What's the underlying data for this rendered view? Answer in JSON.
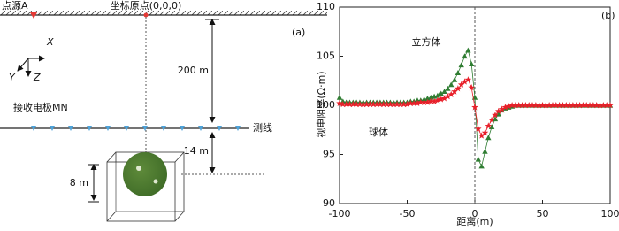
{
  "diagram": {
    "source_label": "点源A",
    "origin_label": "坐标原点(0,0,0)",
    "panel_label": "(a)",
    "axis_x": "X",
    "axis_y": "Y",
    "axis_z": "Z",
    "depth_label": "200 m",
    "electrodes_label": "接收电极MN",
    "line_label": "测线",
    "offset_label": "14 m",
    "size_label": "8 m"
  },
  "chart_data": {
    "type": "scatter",
    "panel_label": "(b)",
    "xlabel": "距离(m)",
    "ylabel": "视电阻率(Ω·m)",
    "xlim": [
      -100,
      100
    ],
    "ylim": [
      90,
      110
    ],
    "xticks": [
      -100,
      -50,
      0,
      50,
      100
    ],
    "yticks": [
      90,
      95,
      100,
      105,
      110
    ],
    "x": [
      -100,
      -97.5,
      -95,
      -92.5,
      -90,
      -87.5,
      -85,
      -82.5,
      -80,
      -77.5,
      -75,
      -72.5,
      -70,
      -67.5,
      -65,
      -62.5,
      -60,
      -57.5,
      -55,
      -52.5,
      -50,
      -47.5,
      -45,
      -42.5,
      -40,
      -37.5,
      -35,
      -32.5,
      -30,
      -27.5,
      -25,
      -22.5,
      -20,
      -17.5,
      -15,
      -12.5,
      -10,
      -7.5,
      -5,
      -2.5,
      0,
      2.5,
      5,
      7.5,
      10,
      12.5,
      15,
      17.5,
      20,
      22.5,
      25,
      27.5,
      30,
      32.5,
      35,
      37.5,
      40,
      42.5,
      45,
      47.5,
      50,
      52.5,
      55,
      57.5,
      60,
      62.5,
      65,
      67.5,
      70,
      72.5,
      75,
      77.5,
      80,
      82.5,
      85,
      87.5,
      90,
      92.5,
      95,
      97.5,
      100
    ],
    "series": [
      {
        "name": "立方体",
        "color": "#2f7d32",
        "marker": "triangle",
        "values": [
          100.8,
          100.4,
          100.3,
          100.3,
          100.3,
          100.3,
          100.3,
          100.3,
          100.3,
          100.3,
          100.3,
          100.3,
          100.3,
          100.3,
          100.3,
          100.3,
          100.3,
          100.3,
          100.3,
          100.3,
          100.3,
          100.4,
          100.4,
          100.5,
          100.5,
          100.6,
          100.7,
          100.8,
          100.9,
          101.0,
          101.2,
          101.4,
          101.7,
          102.1,
          102.6,
          103.3,
          104.1,
          105.0,
          105.6,
          104.2,
          100.8,
          94.5,
          93.8,
          95.3,
          96.7,
          97.8,
          98.6,
          99.1,
          99.5,
          99.7,
          99.8,
          99.9,
          100.0,
          100.0,
          100.0,
          100.0,
          100.0,
          100.0,
          100.0,
          100.0,
          100.0,
          100.0,
          100.0,
          100.0,
          100.0,
          100.0,
          100.0,
          100.0,
          100.0,
          100.0,
          100.0,
          100.0,
          100.0,
          100.0,
          100.0,
          100.0,
          100.0,
          100.0,
          100.0,
          100.0,
          100.0
        ]
      },
      {
        "name": "球体",
        "color": "#e8202a",
        "marker": "star",
        "values": [
          100.2,
          100.1,
          100.1,
          100.1,
          100.1,
          100.1,
          100.1,
          100.1,
          100.1,
          100.1,
          100.1,
          100.1,
          100.1,
          100.1,
          100.1,
          100.1,
          100.1,
          100.1,
          100.1,
          100.1,
          100.1,
          100.2,
          100.2,
          100.2,
          100.3,
          100.3,
          100.3,
          100.4,
          100.4,
          100.5,
          100.6,
          100.7,
          100.9,
          101.1,
          101.4,
          101.7,
          102.1,
          102.4,
          102.6,
          101.8,
          99.8,
          97.6,
          96.9,
          97.2,
          97.9,
          98.5,
          99.0,
          99.4,
          99.6,
          99.8,
          99.9,
          100.0,
          100.0,
          100.0,
          100.0,
          100.0,
          100.0,
          100.0,
          100.0,
          100.0,
          100.0,
          100.0,
          100.0,
          100.0,
          100.0,
          100.0,
          100.0,
          100.0,
          100.0,
          100.0,
          100.0,
          100.0,
          100.0,
          100.0,
          100.0,
          100.0,
          100.0,
          100.0,
          100.0,
          100.0,
          100.0
        ]
      }
    ]
  }
}
